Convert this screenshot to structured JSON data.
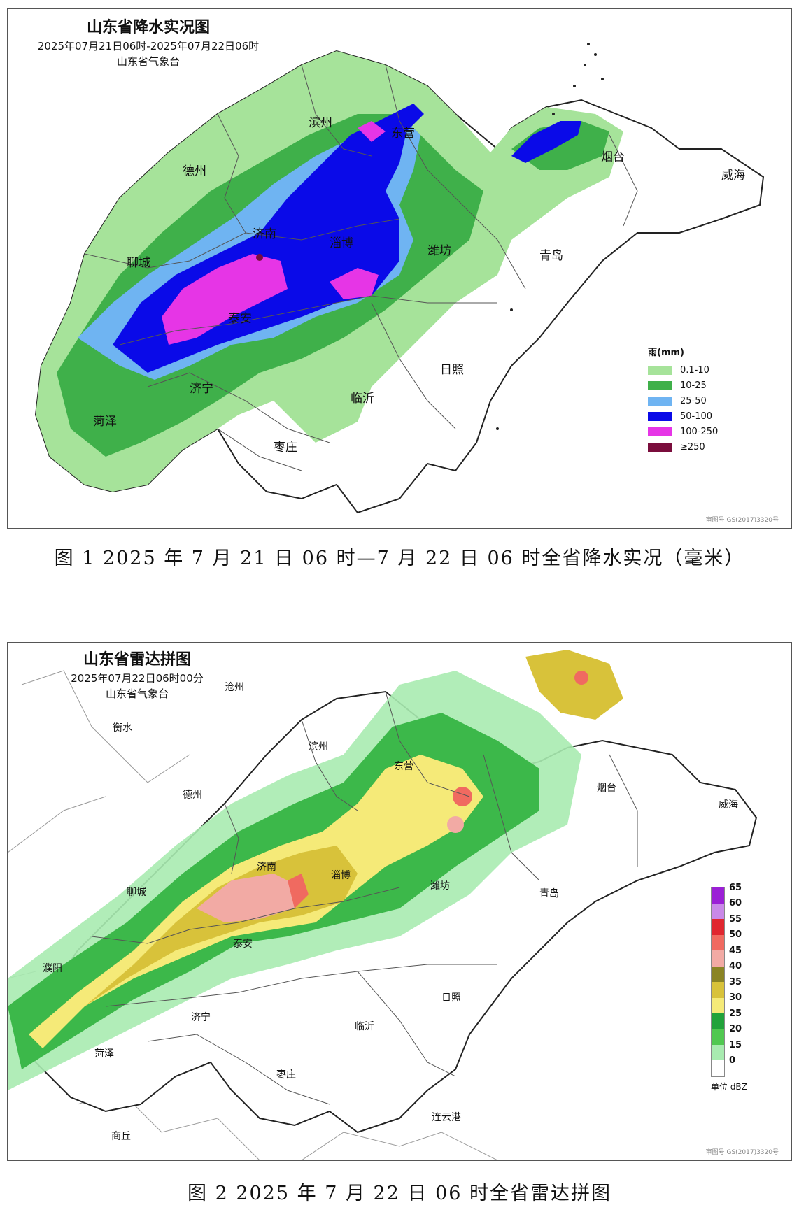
{
  "figure1": {
    "title": "山东省降水实况图",
    "period": "2025年07月21日06时-2025年07月22日06时",
    "agency": "山东省气象台",
    "caption": "图 1 2025 年 7 月 21 日 06 时—7 月 22 日 06 时全省降水实况（毫米）",
    "map_stamp": "审图号  GS(2017)3320号",
    "legend_title": "雨(mm)",
    "legend": [
      {
        "label": "0.1-10",
        "color": "#a6e39a"
      },
      {
        "label": "10-25",
        "color": "#3fb04a"
      },
      {
        "label": "25-50",
        "color": "#6fb4f2"
      },
      {
        "label": "50-100",
        "color": "#0a0ae8"
      },
      {
        "label": "100-250",
        "color": "#e635e6"
      },
      {
        "label": "≥250",
        "color": "#7a0d3c"
      }
    ],
    "cities": [
      "滨州",
      "东营",
      "德州",
      "烟台",
      "威海",
      "济南",
      "淄博",
      "潍坊",
      "聊城",
      "青岛",
      "泰安",
      "济宁",
      "临沂",
      "日照",
      "菏泽",
      "枣庄"
    ]
  },
  "figure2": {
    "title": "山东省雷达拼图",
    "time": "2025年07月22日06时00分",
    "agency": "山东省气象台",
    "caption": "图 2 2025 年 7 月 22 日 06 时全省雷达拼图",
    "map_stamp": "审图号  GS(2017)3320号",
    "legend_unit": "单位 dBZ",
    "legend": [
      {
        "label": "65",
        "color": "#9b1fd6"
      },
      {
        "label": "60",
        "color": "#c988e8"
      },
      {
        "label": "55",
        "color": "#e0262f"
      },
      {
        "label": "50",
        "color": "#f06a60"
      },
      {
        "label": "45",
        "color": "#f2aaa4"
      },
      {
        "label": "40",
        "color": "#8a8424"
      },
      {
        "label": "35",
        "color": "#d8c23a"
      },
      {
        "label": "30",
        "color": "#f5ea78"
      },
      {
        "label": "25",
        "color": "#21a23a"
      },
      {
        "label": "20",
        "color": "#50c850"
      },
      {
        "label": "15",
        "color": "#a8ebb0"
      },
      {
        "label": "0",
        "color": "#ffffff"
      }
    ],
    "cities": [
      "沧州",
      "衡水",
      "滨州",
      "东营",
      "德州",
      "烟台",
      "威海",
      "济南",
      "淄博",
      "聊城",
      "潍坊",
      "青岛",
      "濮阳",
      "泰安",
      "日照",
      "济宁",
      "临沂",
      "菏泽",
      "枣庄",
      "连云港",
      "商丘"
    ]
  }
}
